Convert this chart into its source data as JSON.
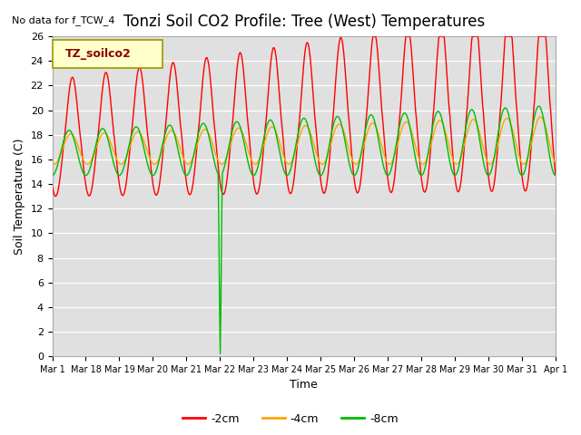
{
  "title": "Tonzi Soil CO2 Profile: Tree (West) Temperatures",
  "subtitle": "No data for f_TCW_4",
  "ylabel": "Soil Temperature (C)",
  "xlabel": "Time",
  "legend_label": "TZ_soilco2",
  "series_labels": [
    "-2cm",
    "-4cm",
    "-8cm"
  ],
  "series_colors": [
    "#ff0000",
    "#ffa500",
    "#00bb00"
  ],
  "ylim": [
    0,
    26
  ],
  "yticks": [
    0,
    2,
    4,
    6,
    8,
    10,
    12,
    14,
    16,
    18,
    20,
    22,
    24,
    26
  ],
  "bg_color": "#ffffff",
  "plot_bg_color": "#e0e0e0",
  "title_fontsize": 12,
  "axis_fontsize": 9,
  "tick_fontsize": 8,
  "xtick_labels": [
    "Mar 1",
    "Mar 18",
    "Mar 19",
    "Mar 20",
    "Mar 21",
    "Mar 22",
    "Mar 23",
    "Mar 24",
    "Mar 25",
    "Mar 26",
    "Mar 27",
    "Mar 28",
    "Mar 29",
    "Mar 30",
    "Mar 31",
    "Apr 1"
  ],
  "n_days": 15.0,
  "n_points": 720
}
